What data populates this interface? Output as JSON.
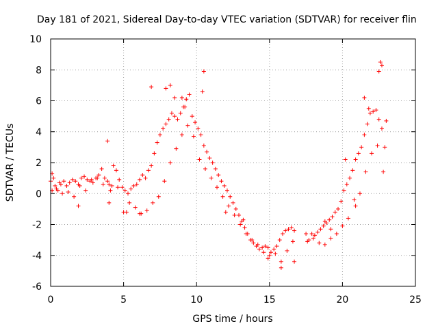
{
  "chart_data": {
    "type": "scatter",
    "title": "Day 181 of 2021, Sidereal Day-to-day VTEC variation (SDTVAR) for receiver flin",
    "xlabel": "GPS time / hours",
    "ylabel": "SDTVAR / TECUs",
    "xlim": [
      0,
      25
    ],
    "ylim": [
      -6,
      10
    ],
    "xticks": [
      0,
      5,
      10,
      15,
      20,
      25
    ],
    "yticks": [
      -6,
      -4,
      -2,
      0,
      2,
      4,
      6,
      8,
      10
    ],
    "xtick_labels": [
      "0",
      "5",
      "10",
      "15",
      "20",
      "25"
    ],
    "ytick_labels": [
      "-6",
      "-4",
      "-2",
      "0",
      "2",
      "4",
      "6",
      "8",
      "10"
    ],
    "grid": true,
    "marker": "+",
    "series": [
      {
        "name": "SDTVAR",
        "color": "#ff0000",
        "x": [
          0.0,
          0.1,
          0.2,
          0.3,
          0.5,
          0.7,
          0.9,
          1.1,
          1.3,
          1.5,
          1.7,
          1.9,
          2.1,
          2.3,
          2.5,
          2.7,
          2.9,
          3.1,
          3.3,
          3.5,
          3.7,
          3.9,
          4.0,
          4.1,
          4.3,
          4.5,
          4.7,
          4.9,
          5.1,
          5.3,
          5.5,
          5.7,
          5.9,
          6.1,
          6.3,
          6.5,
          6.7,
          6.9,
          7.1,
          7.3,
          7.5,
          7.7,
          7.9,
          8.1,
          8.3,
          8.5,
          8.7,
          8.9,
          9.1,
          9.3,
          9.5,
          9.7,
          9.9,
          10.1,
          10.3,
          10.5,
          10.7,
          10.9,
          11.1,
          11.3,
          11.5,
          11.7,
          11.9,
          12.1,
          12.3,
          12.5,
          12.7,
          12.9,
          13.1,
          13.3,
          13.5,
          13.7,
          13.9,
          14.1,
          14.3,
          14.5,
          14.7,
          14.9,
          15.1,
          15.3,
          15.5,
          15.7,
          15.9,
          16.1,
          16.3,
          16.5,
          16.7,
          17.5,
          17.7,
          17.9,
          18.1,
          18.3,
          18.5,
          18.7,
          18.9,
          19.1,
          19.3,
          19.5,
          19.7,
          19.9,
          20.1,
          20.3,
          20.5,
          20.7,
          20.9,
          21.1,
          21.3,
          21.5,
          21.7,
          21.9,
          22.1,
          22.3,
          22.5,
          22.7,
          22.9,
          23.0,
          0.1,
          0.4,
          0.8,
          1.2,
          1.6,
          2.0,
          2.4,
          2.8,
          3.2,
          3.6,
          4.2,
          4.6,
          5.0,
          5.4,
          5.8,
          6.2,
          6.6,
          7.0,
          7.4,
          7.8,
          8.2,
          8.6,
          9.0,
          9.4,
          9.8,
          10.2,
          10.6,
          11.0,
          11.4,
          11.8,
          12.2,
          12.6,
          13.0,
          13.4,
          13.8,
          14.2,
          14.6,
          15.0,
          15.4,
          15.8,
          16.2,
          16.6,
          17.6,
          18.0,
          18.4,
          18.8,
          19.2,
          19.6,
          20.0,
          20.4,
          20.8,
          21.2,
          21.6,
          22.0,
          22.4,
          22.8,
          3.9,
          7.9,
          8.5,
          8.2,
          10.5,
          10.4,
          22.6,
          22.7,
          22.5,
          21.5,
          21.8,
          20.2,
          15.8,
          16.7,
          14.9,
          9.2,
          9.0,
          6.9,
          4.0,
          1.9,
          0.6,
          5.2,
          6.1,
          12.0,
          13.2,
          19.2,
          18.8,
          20.9
        ],
        "y": [
          0.8,
          1.3,
          1.0,
          0.5,
          0.2,
          0.6,
          0.8,
          0.5,
          0.7,
          0.9,
          0.8,
          0.6,
          1.0,
          1.1,
          0.9,
          0.8,
          0.7,
          1.0,
          1.2,
          1.6,
          1.0,
          0.8,
          0.6,
          0.2,
          1.8,
          1.5,
          0.9,
          0.4,
          0.2,
          0.0,
          0.3,
          0.5,
          0.6,
          0.9,
          1.2,
          1.0,
          1.5,
          1.8,
          2.6,
          3.3,
          3.8,
          4.2,
          4.5,
          4.8,
          5.2,
          5.0,
          4.8,
          5.2,
          5.6,
          6.1,
          6.4,
          5.0,
          4.6,
          4.2,
          3.8,
          3.1,
          2.7,
          2.3,
          2.0,
          1.6,
          1.2,
          0.8,
          0.5,
          0.2,
          -0.2,
          -0.6,
          -1.0,
          -1.4,
          -1.8,
          -2.2,
          -2.6,
          -3.0,
          -3.2,
          -3.4,
          -3.6,
          -3.5,
          -3.4,
          -3.5,
          -3.8,
          -3.6,
          -3.4,
          -3.0,
          -2.6,
          -2.4,
          -2.3,
          -2.2,
          -2.4,
          -2.6,
          -3.0,
          -2.6,
          -2.7,
          -2.5,
          -2.3,
          -2.1,
          -1.9,
          -1.7,
          -1.5,
          -1.2,
          -1.0,
          -0.5,
          0.2,
          0.6,
          1.0,
          1.5,
          2.2,
          2.6,
          3.0,
          3.8,
          4.5,
          5.2,
          5.3,
          5.4,
          4.8,
          4.2,
          3.0,
          4.7,
          0.2,
          0.3,
          0.0,
          0.1,
          -0.2,
          0.5,
          0.2,
          0.9,
          1.0,
          0.6,
          0.5,
          0.4,
          -1.2,
          -0.6,
          -0.9,
          -1.3,
          -1.1,
          -0.6,
          -0.2,
          0.8,
          2.0,
          2.9,
          3.8,
          4.4,
          3.7,
          2.2,
          1.6,
          1.0,
          0.4,
          -0.2,
          -0.8,
          -1.4,
          -2.0,
          -2.6,
          -3.0,
          -3.3,
          -3.8,
          -4.0,
          -3.9,
          -4.4,
          -3.7,
          -3.1,
          -3.1,
          -2.9,
          -3.2,
          -3.3,
          -2.9,
          -2.6,
          -2.1,
          -1.6,
          -0.4,
          0.0,
          1.4,
          2.6,
          3.1,
          1.4,
          3.4,
          6.8,
          6.2,
          7.0,
          7.9,
          6.6,
          8.5,
          8.3,
          7.9,
          6.2,
          5.5,
          2.2,
          -4.8,
          -4.4,
          -4.2,
          5.6,
          6.2,
          6.9,
          -0.6,
          -0.8,
          0.7,
          -1.2,
          -1.3,
          -1.2,
          -1.7,
          -2.3,
          -1.8,
          -0.8
        ]
      }
    ]
  }
}
